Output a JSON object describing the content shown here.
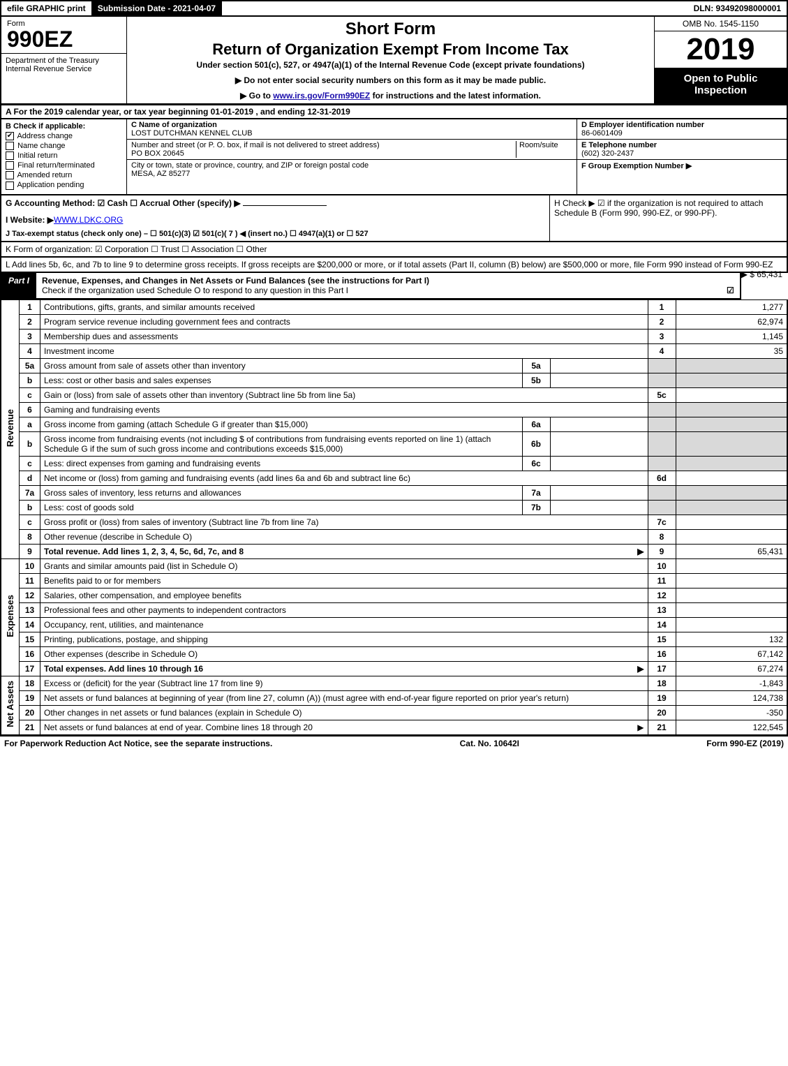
{
  "topbar": {
    "efile": "efile GRAPHIC print",
    "submission_label": "Submission Date - 2021-04-07",
    "dln": "DLN: 93492098000001"
  },
  "header": {
    "form_label": "Form",
    "form_no": "990EZ",
    "dept": "Department of the Treasury\nInternal Revenue Service",
    "short_form": "Short Form",
    "return_title": "Return of Organization Exempt From Income Tax",
    "under": "Under section 501(c), 527, or 4947(a)(1) of the Internal Revenue Code (except private foundations)",
    "notice1": "▶ Do not enter social security numbers on this form as it may be made public.",
    "notice2_pre": "▶ Go to ",
    "notice2_link": "www.irs.gov/Form990EZ",
    "notice2_post": " for instructions and the latest information.",
    "omb": "OMB No. 1545-1150",
    "taxyear": "2019",
    "open_public": "Open to Public Inspection"
  },
  "rowA": "A  For the 2019 calendar year, or tax year beginning 01-01-2019 , and ending 12-31-2019",
  "colB": {
    "header": "B  Check if applicable:",
    "items": [
      "Address change",
      "Name change",
      "Initial return",
      "Final return/terminated",
      "Amended return",
      "Application pending"
    ],
    "checked": [
      true,
      false,
      false,
      false,
      false,
      false
    ]
  },
  "colC": {
    "name_lbl": "C Name of organization",
    "name": "LOST DUTCHMAN KENNEL CLUB",
    "street_lbl": "Number and street (or P. O. box, if mail is not delivered to street address)",
    "room_lbl": "Room/suite",
    "street": "PO BOX 20645",
    "city_lbl": "City or town, state or province, country, and ZIP or foreign postal code",
    "city": "MESA, AZ  85277"
  },
  "colDE": {
    "d_lbl": "D Employer identification number",
    "ein": "86-0601409",
    "e_lbl": "E Telephone number",
    "phone": "(602) 320-2437",
    "f_lbl": "F Group Exemption Number  ▶"
  },
  "gih": {
    "g": "G Accounting Method:   ☑ Cash   ☐ Accrual   Other (specify) ▶",
    "i_lbl": "I Website: ▶",
    "i_val": "WWW.LDKC.ORG",
    "j": "J Tax-exempt status (check only one) – ☐ 501(c)(3)  ☑ 501(c)( 7 ) ◀ (insert no.)  ☐ 4947(a)(1) or  ☐ 527",
    "h": "H  Check ▶  ☑  if the organization is not required to attach Schedule B (Form 990, 990-EZ, or 990-PF)."
  },
  "lineK": "K Form of organization:   ☑ Corporation   ☐ Trust   ☐ Association   ☐ Other",
  "lineL": {
    "text": "L Add lines 5b, 6c, and 7b to line 9 to determine gross receipts. If gross receipts are $200,000 or more, or if total assets (Part II, column (B) below) are $500,000 or more, file Form 990 instead of Form 990-EZ",
    "amount": "▶ $ 65,431"
  },
  "partI": {
    "tab": "Part I",
    "title": "Revenue, Expenses, and Changes in Net Assets or Fund Balances (see the instructions for Part I)",
    "check": "Check if the organization used Schedule O to respond to any question in this Part I",
    "checked": "☑"
  },
  "sections": {
    "revenue": "Revenue",
    "expenses": "Expenses",
    "netassets": "Net Assets"
  },
  "rows": [
    {
      "sec": "rev",
      "ln": "1",
      "desc": "Contributions, gifts, grants, and similar amounts received",
      "num": "1",
      "amt": "1,277"
    },
    {
      "sec": "rev",
      "ln": "2",
      "desc": "Program service revenue including government fees and contracts",
      "num": "2",
      "amt": "62,974"
    },
    {
      "sec": "rev",
      "ln": "3",
      "desc": "Membership dues and assessments",
      "num": "3",
      "amt": "1,145"
    },
    {
      "sec": "rev",
      "ln": "4",
      "desc": "Investment income",
      "num": "4",
      "amt": "35"
    },
    {
      "sec": "rev",
      "ln": "5a",
      "desc": "Gross amount from sale of assets other than inventory",
      "sub": "5a",
      "subval": "",
      "shade": true
    },
    {
      "sec": "rev",
      "ln": "b",
      "desc": "Less: cost or other basis and sales expenses",
      "sub": "5b",
      "subval": "",
      "shade": true
    },
    {
      "sec": "rev",
      "ln": "c",
      "desc": "Gain or (loss) from sale of assets other than inventory (Subtract line 5b from line 5a)",
      "num": "5c",
      "amt": ""
    },
    {
      "sec": "rev",
      "ln": "6",
      "desc": "Gaming and fundraising events",
      "shade_full": true
    },
    {
      "sec": "rev",
      "ln": "a",
      "desc": "Gross income from gaming (attach Schedule G if greater than $15,000)",
      "sub": "6a",
      "subval": "",
      "shade": true
    },
    {
      "sec": "rev",
      "ln": "b",
      "desc": "Gross income from fundraising events (not including $                of contributions from fundraising events reported on line 1) (attach Schedule G if the sum of such gross income and contributions exceeds $15,000)",
      "sub": "6b",
      "subval": "",
      "shade": true
    },
    {
      "sec": "rev",
      "ln": "c",
      "desc": "Less: direct expenses from gaming and fundraising events",
      "sub": "6c",
      "subval": "",
      "shade": true
    },
    {
      "sec": "rev",
      "ln": "d",
      "desc": "Net income or (loss) from gaming and fundraising events (add lines 6a and 6b and subtract line 6c)",
      "num": "6d",
      "amt": ""
    },
    {
      "sec": "rev",
      "ln": "7a",
      "desc": "Gross sales of inventory, less returns and allowances",
      "sub": "7a",
      "subval": "",
      "shade": true
    },
    {
      "sec": "rev",
      "ln": "b",
      "desc": "Less: cost of goods sold",
      "sub": "7b",
      "subval": "",
      "shade": true
    },
    {
      "sec": "rev",
      "ln": "c",
      "desc": "Gross profit or (loss) from sales of inventory (Subtract line 7b from line 7a)",
      "num": "7c",
      "amt": ""
    },
    {
      "sec": "rev",
      "ln": "8",
      "desc": "Other revenue (describe in Schedule O)",
      "num": "8",
      "amt": ""
    },
    {
      "sec": "rev",
      "ln": "9",
      "desc": "Total revenue. Add lines 1, 2, 3, 4, 5c, 6d, 7c, and 8",
      "num": "9",
      "amt": "65,431",
      "bold": true,
      "arrow": true
    },
    {
      "sec": "exp",
      "ln": "10",
      "desc": "Grants and similar amounts paid (list in Schedule O)",
      "num": "10",
      "amt": ""
    },
    {
      "sec": "exp",
      "ln": "11",
      "desc": "Benefits paid to or for members",
      "num": "11",
      "amt": ""
    },
    {
      "sec": "exp",
      "ln": "12",
      "desc": "Salaries, other compensation, and employee benefits",
      "num": "12",
      "amt": ""
    },
    {
      "sec": "exp",
      "ln": "13",
      "desc": "Professional fees and other payments to independent contractors",
      "num": "13",
      "amt": ""
    },
    {
      "sec": "exp",
      "ln": "14",
      "desc": "Occupancy, rent, utilities, and maintenance",
      "num": "14",
      "amt": ""
    },
    {
      "sec": "exp",
      "ln": "15",
      "desc": "Printing, publications, postage, and shipping",
      "num": "15",
      "amt": "132"
    },
    {
      "sec": "exp",
      "ln": "16",
      "desc": "Other expenses (describe in Schedule O)",
      "num": "16",
      "amt": "67,142"
    },
    {
      "sec": "exp",
      "ln": "17",
      "desc": "Total expenses. Add lines 10 through 16",
      "num": "17",
      "amt": "67,274",
      "bold": true,
      "arrow": true
    },
    {
      "sec": "net",
      "ln": "18",
      "desc": "Excess or (deficit) for the year (Subtract line 17 from line 9)",
      "num": "18",
      "amt": "-1,843"
    },
    {
      "sec": "net",
      "ln": "19",
      "desc": "Net assets or fund balances at beginning of year (from line 27, column (A)) (must agree with end-of-year figure reported on prior year's return)",
      "num": "19",
      "amt": "124,738"
    },
    {
      "sec": "net",
      "ln": "20",
      "desc": "Other changes in net assets or fund balances (explain in Schedule O)",
      "num": "20",
      "amt": "-350"
    },
    {
      "sec": "net",
      "ln": "21",
      "desc": "Net assets or fund balances at end of year. Combine lines 18 through 20",
      "num": "21",
      "amt": "122,545",
      "arrow": true
    }
  ],
  "footer": {
    "left": "For Paperwork Reduction Act Notice, see the separate instructions.",
    "mid": "Cat. No. 10642I",
    "right": "Form 990-EZ (2019)"
  }
}
